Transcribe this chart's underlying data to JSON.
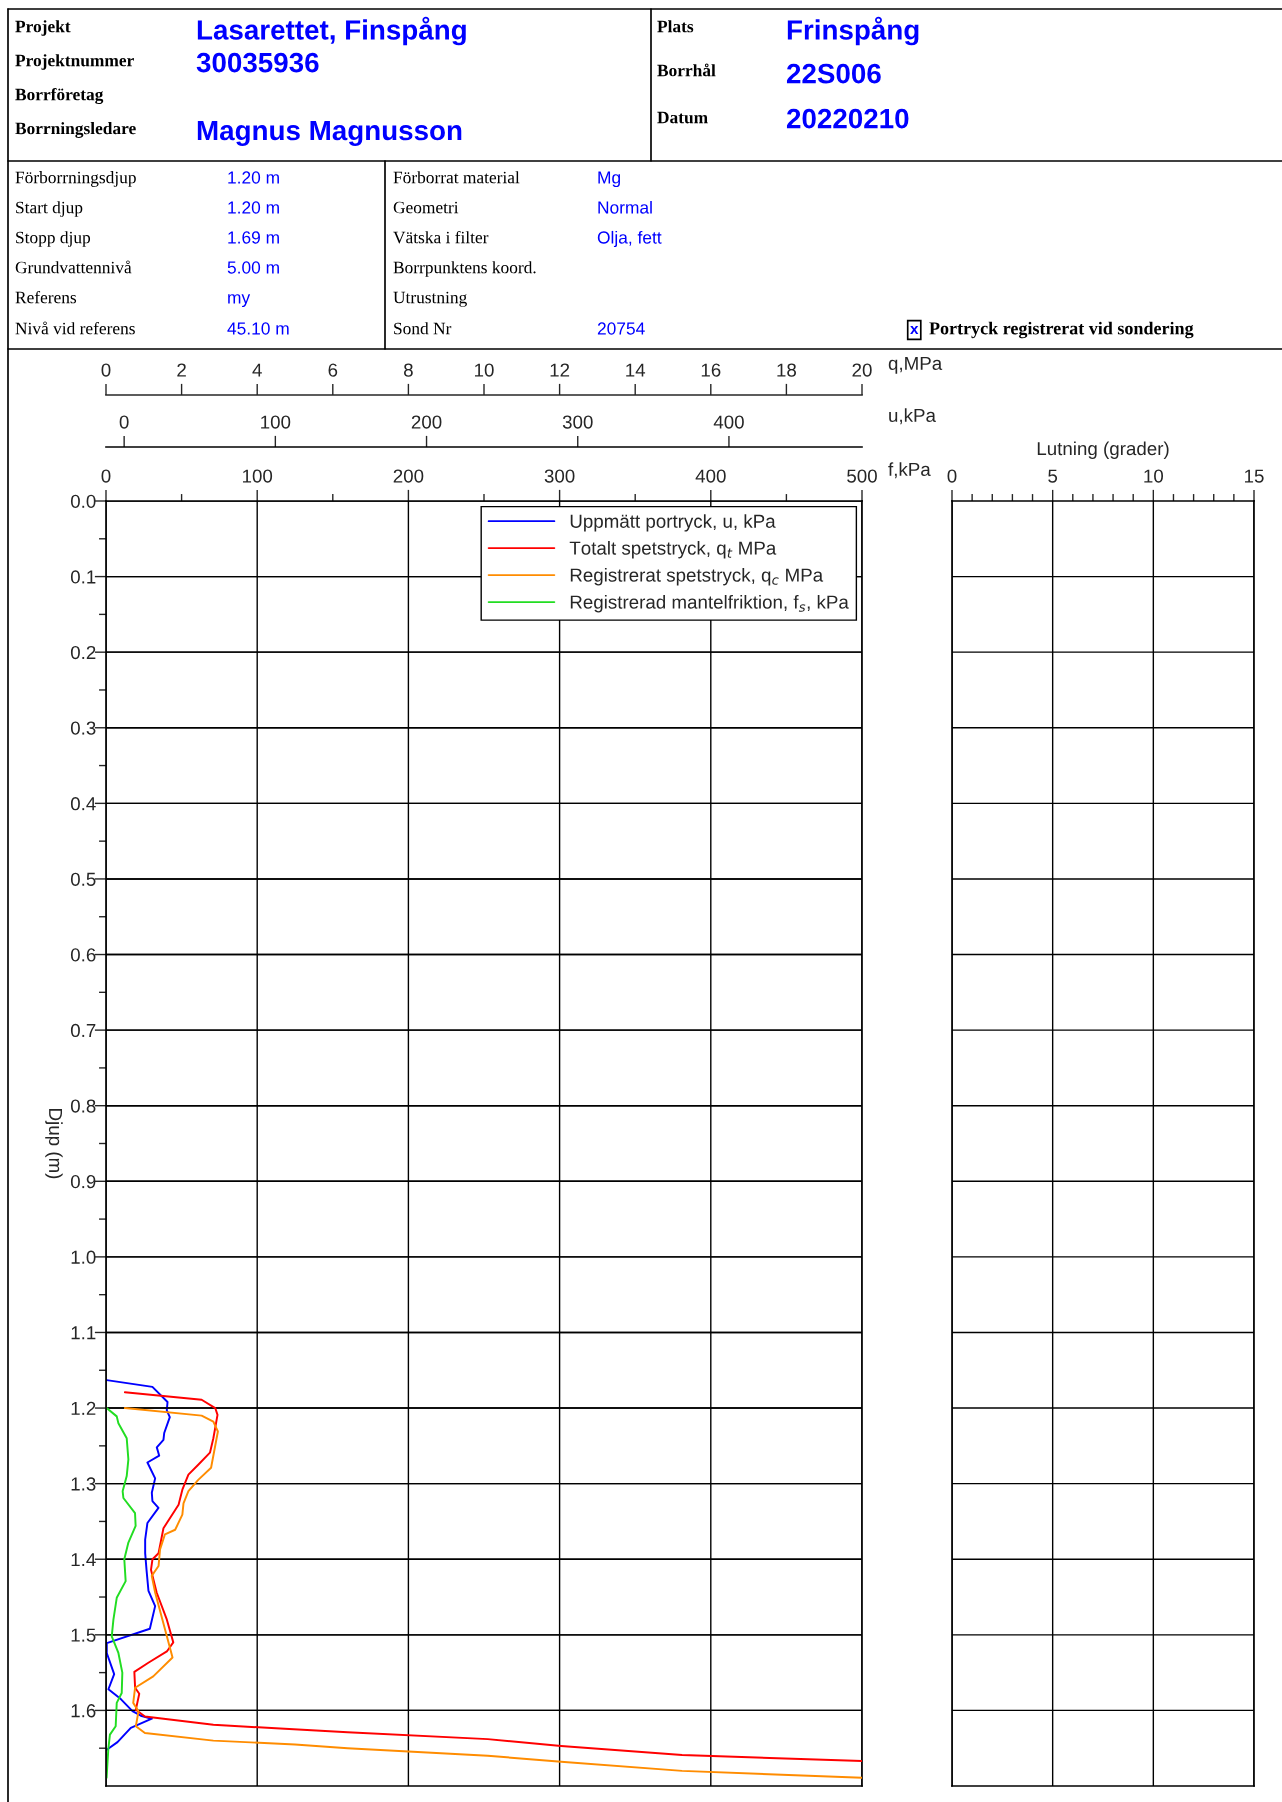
{
  "chart_data": [
    {
      "type": "line",
      "xlabel": "u,kPa",
      "xlim": [
        -12,
        488
      ],
      "xticks": [
        0,
        100,
        200,
        300,
        400
      ],
      "ylim": [
        1.7,
        0
      ],
      "yticks": [
        0.1,
        0.2,
        0.3,
        0.4,
        0.5,
        0.6,
        0.7,
        0.8,
        0.9,
        1.0,
        1.1,
        1.2,
        1.3,
        1.4,
        1.5,
        1.6
      ],
      "tick_labels": "x",
      "grid": "y",
      "series": [
        {
          "name": "Uppmätt portryck, u, kPa",
          "color": "#0000ff",
          "x": [
            -11.5,
            18.7,
            28.7,
            28.2,
            30.2,
            26.5,
            26.0,
            21.6,
            23.2,
            15.4,
            20.5,
            18.3,
            18.7,
            22.7,
            15.4,
            13.9,
            13.9,
            14.8,
            16.1,
            20.5,
            17.0,
            -11.5,
            -11.5,
            -6.6,
            -10.4,
            -2.2,
            5.5,
            11.0,
            18.3,
            4.4,
            -4.4,
            -11.5
          ],
          "values": [
            1.163,
            1.172,
            1.192,
            1.203,
            1.212,
            1.233,
            1.242,
            1.252,
            1.263,
            1.272,
            1.293,
            1.312,
            1.323,
            1.332,
            1.352,
            1.374,
            1.392,
            1.414,
            1.442,
            1.462,
            1.492,
            1.511,
            1.524,
            1.552,
            1.572,
            1.585,
            1.601,
            1.607,
            1.611,
            1.623,
            1.642,
            1.652
          ]
        }
      ]
    },
    {
      "type": "line",
      "ylabel": "Djup (m)",
      "xlabel": "f,kPa",
      "x2label": "q,MPa",
      "xlim": [
        0,
        500
      ],
      "xticks": [
        0,
        {
          "value": 50,
          "label": null
        },
        100,
        {
          "value": 150,
          "label": null
        },
        200,
        {
          "value": 250,
          "label": null
        },
        300,
        {
          "value": 350,
          "label": null
        },
        400,
        {
          "value": 450,
          "label": null
        },
        500
      ],
      "x2lim": [
        0,
        20
      ],
      "x2ticks": [
        0,
        2,
        4,
        6,
        8,
        10,
        12,
        14,
        16,
        18,
        20
      ],
      "ylim": [
        1.7,
        0
      ],
      "yticks": [
        {
          "value": 0,
          "label": "0.0"
        },
        {
          "value": 0.05,
          "label": null
        },
        {
          "value": 0.1,
          "label": "0.1"
        },
        {
          "value": 0.15,
          "label": null
        },
        {
          "value": 0.2,
          "label": "0.2"
        },
        {
          "value": 0.25,
          "label": null
        },
        {
          "value": 0.3,
          "label": "0.3"
        },
        {
          "value": 0.35,
          "label": null
        },
        {
          "value": 0.4,
          "label": "0.4"
        },
        {
          "value": 0.45,
          "label": null
        },
        {
          "value": 0.5,
          "label": "0.5"
        },
        {
          "value": 0.55,
          "label": null
        },
        {
          "value": 0.6,
          "label": "0.6"
        },
        {
          "value": 0.65,
          "label": null
        },
        {
          "value": 0.7,
          "label": "0.7"
        },
        {
          "value": 0.75,
          "label": null
        },
        {
          "value": 0.8,
          "label": "0.8"
        },
        {
          "value": 0.85,
          "label": null
        },
        {
          "value": 0.9,
          "label": "0.9"
        },
        {
          "value": 0.95,
          "label": null
        },
        {
          "value": 1.0,
          "label": "1.0"
        },
        {
          "value": 1.05,
          "label": null
        },
        {
          "value": 1.1,
          "label": "1.1"
        },
        {
          "value": 1.15,
          "label": null
        },
        {
          "value": 1.2,
          "label": "1.2"
        },
        {
          "value": 1.25,
          "label": null
        },
        {
          "value": 1.3,
          "label": "1.3"
        },
        {
          "value": 1.35,
          "label": null
        },
        {
          "value": 1.4,
          "label": "1.4"
        },
        {
          "value": 1.45,
          "label": null
        },
        {
          "value": 1.5,
          "label": "1.5"
        },
        {
          "value": 1.55,
          "label": null
        },
        {
          "value": 1.6,
          "label": "1.6"
        },
        {
          "value": 1.65,
          "label": null
        }
      ],
      "grid": true,
      "legend": "top right",
      "series": [
        {
          "name": "Totalt spetstryck, q$_{t}$ MPa",
          "color": "#ff0000",
          "axis": "x2",
          "x": [
            0.5,
            2.53,
            2.89,
            2.95,
            2.84,
            2.75,
            2.44,
            2.18,
            2.02,
            1.92,
            1.52,
            1.39,
            1.23,
            1.19,
            1.34,
            1.61,
            1.78,
            1.61,
            1.12,
            0.75,
            0.77,
            0.88,
            0.79,
            1.03,
            2.84,
            4.61,
            6.39,
            10.1,
            12.04,
            15.24,
            20
          ],
          "values": [
            1.179,
            1.189,
            1.2,
            1.209,
            1.24,
            1.259,
            1.275,
            1.288,
            1.308,
            1.328,
            1.359,
            1.392,
            1.4,
            1.414,
            1.444,
            1.48,
            1.51,
            1.522,
            1.537,
            1.549,
            1.57,
            1.578,
            1.599,
            1.608,
            1.619,
            1.624,
            1.629,
            1.638,
            1.647,
            1.659,
            1.667
          ]
        },
        {
          "name": "Registrerat spetstryck, q$_{c}$ MPa",
          "color": "#ff8c00",
          "axis": "x2",
          "x": [
            0.5,
            2.53,
            2.84,
            2.96,
            2.78,
            2.44,
            2.18,
            2.05,
            2.02,
            1.83,
            1.56,
            1.43,
            1.39,
            1.21,
            1.3,
            1.61,
            1.76,
            1.25,
            0.77,
            0.72,
            0.86,
            0.79,
            1.03,
            2.84,
            5.0,
            6.39,
            10.1,
            12.04,
            15.24,
            20
          ],
          "values": [
            1.2,
            1.21,
            1.218,
            1.231,
            1.279,
            1.295,
            1.31,
            1.326,
            1.341,
            1.361,
            1.367,
            1.387,
            1.409,
            1.422,
            1.444,
            1.502,
            1.53,
            1.555,
            1.57,
            1.59,
            1.601,
            1.621,
            1.63,
            1.64,
            1.645,
            1.65,
            1.66,
            1.668,
            1.68,
            1.689
          ]
        },
        {
          "name": "Registrerad mantelfriktion, f$_{s}$, kPa",
          "color": "#22dd22",
          "x": [
            0.4,
            7.1,
            8.2,
            13.7,
            14.8,
            13.7,
            11.0,
            11.5,
            19.2,
            19.6,
            14.8,
            12.1,
            13.0,
            7.1,
            4.9,
            3.8,
            8.2,
            10.8,
            10.4,
            7.1,
            6.4,
            2.6,
            1.5,
            0.4
          ],
          "values": [
            1.2,
            1.211,
            1.22,
            1.24,
            1.268,
            1.29,
            1.31,
            1.319,
            1.339,
            1.356,
            1.378,
            1.4,
            1.429,
            1.451,
            1.48,
            1.502,
            1.524,
            1.55,
            1.577,
            1.59,
            1.621,
            1.632,
            1.652,
            1.689
          ]
        }
      ],
      "annotations": [
        "Projekt",
        "Lasarettet, Finspång",
        "Projektnummer",
        "30035936",
        "Borrföretag",
        "Borrningsledare",
        "Magnus Magnusson",
        "Plats",
        "Frinspång",
        "Borrhål",
        "22S006",
        "Datum",
        "20220210",
        "Förborrningsdjup",
        "1.20 m",
        "Start djup",
        "1.20 m",
        "Stopp djup",
        "1.69 m",
        "Grundvattennivå",
        "5.00 m",
        "Referens",
        "my",
        "Nivå vid referens",
        "45.10 m",
        "Förborrat material",
        "Mg",
        "Geometri",
        "Normal",
        "Vätska i filter",
        "Olja, fett",
        "Borrpunktens koord.",
        "Utrustning",
        "Sond Nr",
        "20754",
        "x",
        "Portryck registrerat vid sondering"
      ]
    },
    {
      "type": "line",
      "xlabel": "Lutning (grader)",
      "xlim": [
        0,
        15
      ],
      "xticks": [
        0,
        {
          "value": 1,
          "label": null
        },
        {
          "value": 2,
          "label": null
        },
        {
          "value": 3,
          "label": null
        },
        {
          "value": 4,
          "label": null
        },
        5,
        {
          "value": 6,
          "label": null
        },
        {
          "value": 7,
          "label": null
        },
        {
          "value": 8,
          "label": null
        },
        {
          "value": 9,
          "label": null
        },
        10,
        {
          "value": 11,
          "label": null
        },
        {
          "value": 12,
          "label": null
        },
        {
          "value": 13,
          "label": null
        },
        {
          "value": 14,
          "label": null
        },
        15
      ],
      "ylim": [
        1.7,
        0
      ],
      "yticks": [
        0.1,
        0.2,
        0.3,
        0.4,
        0.5,
        0.6,
        0.7,
        0.8,
        0.9,
        1.0,
        1.1,
        1.2,
        1.3,
        1.4,
        1.5,
        1.6
      ],
      "tick_labels": "x",
      "grid": true
    }
  ]
}
